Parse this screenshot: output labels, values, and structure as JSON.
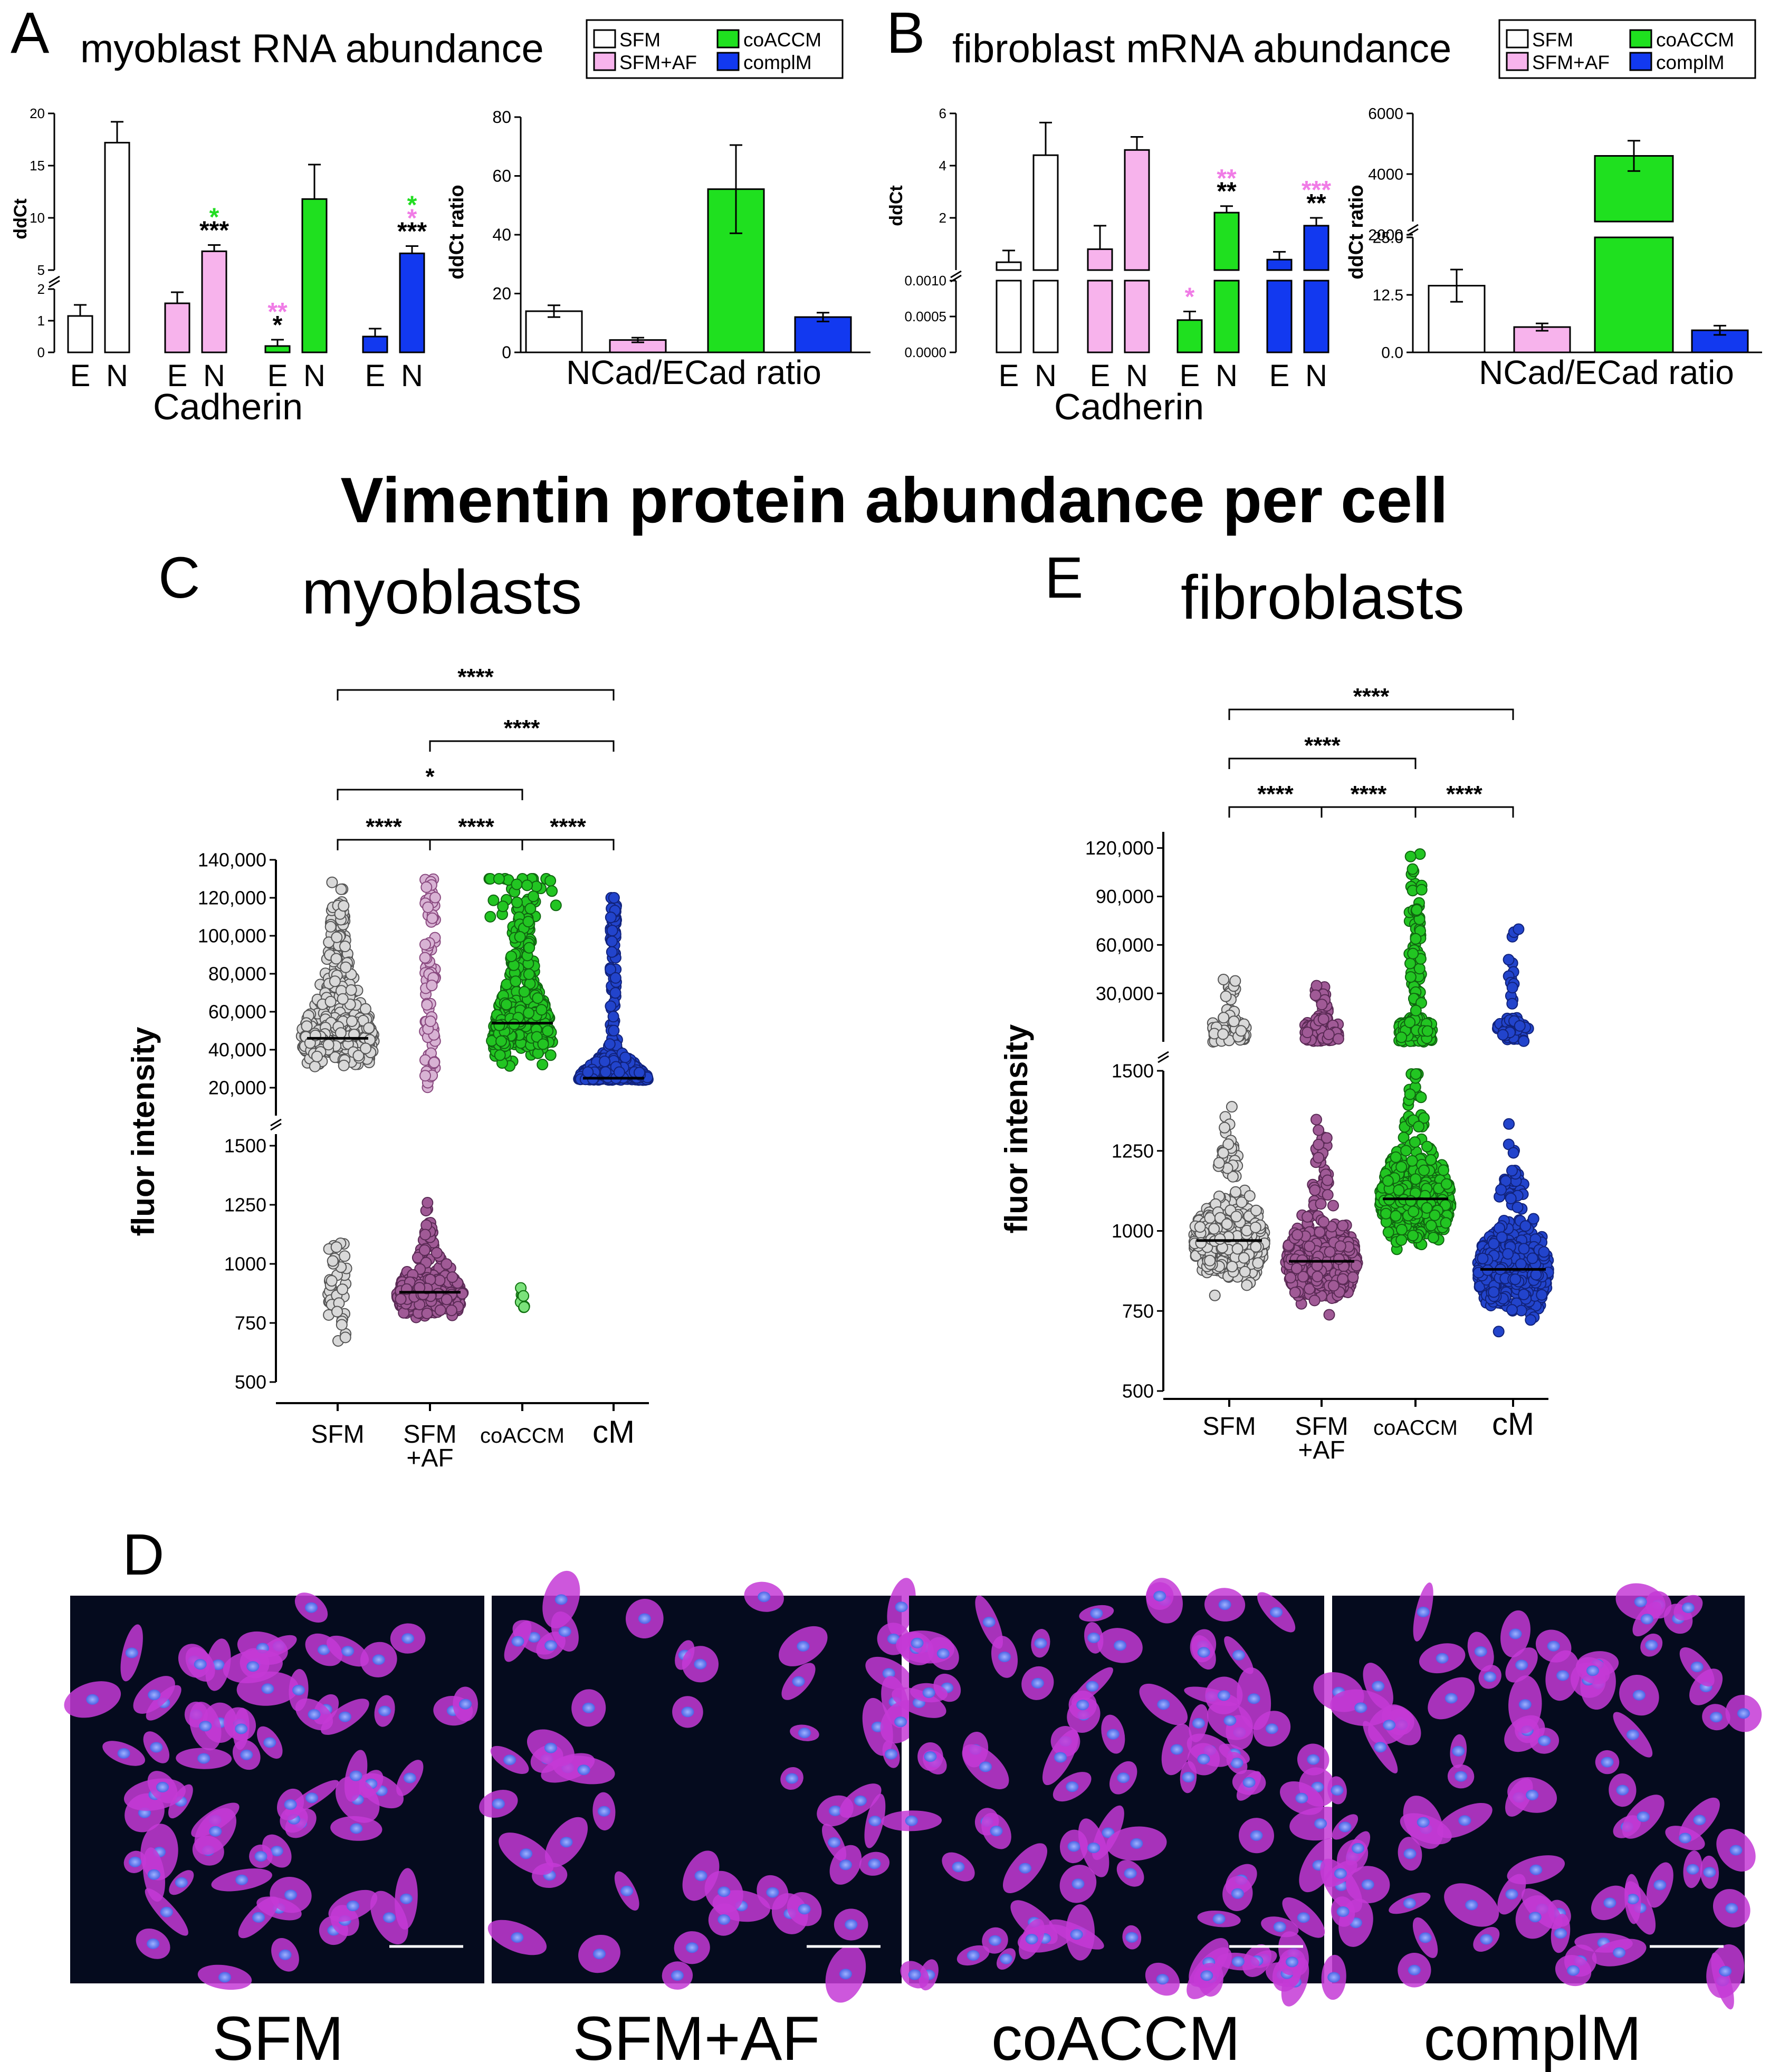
{
  "figure_title": "Vimentin protein abundance per cell",
  "colors": {
    "SFM": "#ffffff",
    "SFM+AF": "#f7b3ec",
    "coACCM": "#1fe01f",
    "complM": "#1239f0",
    "sig_green": "#22dd22",
    "sig_pink": "#f07ce6",
    "dot_SFM": "#d9d9d9",
    "dot_SFMAF": "#a05a96",
    "dot_coACCM": "#22c522",
    "dot_cM": "#2244cc"
  },
  "legend": {
    "items": [
      "SFM",
      "SFM+AF",
      "coACCM",
      "complM"
    ]
  },
  "panels": {
    "A": {
      "letter": "A",
      "title": "myoblast RNA abundance",
      "ylabel": "ddCt",
      "xlabel": "Cadherin",
      "ratio_ylabel": "ddCt ratio",
      "ratio_xlabel": "NCad/ECad ratio"
    },
    "B": {
      "letter": "B",
      "title": "fibroblast mRNA abundance",
      "ylabel": "ddCt",
      "xlabel": "Cadherin",
      "ratio_ylabel": "ddCt ratio",
      "ratio_xlabel": "NCad/ECad ratio"
    },
    "C": {
      "letter": "C",
      "title": "myoblasts",
      "ylabel": "fluor intensity"
    },
    "E": {
      "letter": "E",
      "title": "fibroblasts",
      "ylabel": "fluor intensity"
    },
    "D": {
      "letter": "D",
      "image_labels": [
        "SFM",
        "SFM+AF",
        "coACCM",
        "complM"
      ]
    }
  },
  "chart_data": [
    {
      "panel": "A-left",
      "type": "bar",
      "ylabel": "ddCt",
      "xlabel": "Cadherin",
      "broken_axis": true,
      "ylim_lower": [
        0,
        2
      ],
      "ylim_upper": [
        5,
        20
      ],
      "yticks_lower": [
        "0",
        "1",
        "2"
      ],
      "yticks_upper": [
        "5",
        "10",
        "15",
        "20"
      ],
      "categories": [
        "E",
        "N"
      ],
      "series": [
        {
          "name": "SFM",
          "values": [
            1.15,
            17.2
          ],
          "errors": [
            0.35,
            2.0
          ],
          "sig": [
            [],
            []
          ]
        },
        {
          "name": "SFM+AF",
          "values": [
            1.55,
            6.8
          ],
          "errors": [
            0.35,
            0.6
          ],
          "sig": [
            [],
            [
              {
                "text": "***",
                "color": "black"
              },
              {
                "text": "*",
                "color": "green"
              }
            ]
          ]
        },
        {
          "name": "coACCM",
          "values": [
            0.2,
            11.8
          ],
          "errors": [
            0.2,
            3.3
          ],
          "sig": [
            [
              {
                "text": "*",
                "color": "black"
              },
              {
                "text": "**",
                "color": "pink"
              }
            ],
            []
          ]
        },
        {
          "name": "complM",
          "values": [
            0.5,
            6.6
          ],
          "errors": [
            0.25,
            0.7
          ],
          "sig": [
            [],
            [
              {
                "text": "***",
                "color": "black"
              },
              {
                "text": "*",
                "color": "pink"
              },
              {
                "text": "*",
                "color": "green"
              }
            ]
          ]
        }
      ]
    },
    {
      "panel": "A-right",
      "type": "bar",
      "ylabel": "ddCt ratio",
      "xlabel": "NCad/ECad ratio",
      "ylim": [
        0,
        80
      ],
      "yticks": [
        "0",
        "20",
        "40",
        "60",
        "80"
      ],
      "categories": [
        "SFM",
        "SFM+AF",
        "coACCM",
        "complM"
      ],
      "values": [
        14,
        4.2,
        55.5,
        12
      ],
      "errors": [
        2,
        0.8,
        15,
        1.5
      ]
    },
    {
      "panel": "B-left",
      "type": "bar",
      "ylabel": "ddCt",
      "xlabel": "Cadherin",
      "broken_axis": true,
      "ylim_lower": [
        0,
        0.001
      ],
      "ylim_upper": [
        0,
        6
      ],
      "yticks_lower": [
        "0.0000",
        "0.0005",
        "0.0010"
      ],
      "yticks_upper": [
        "2",
        "4",
        "6"
      ],
      "categories": [
        "E",
        "N"
      ],
      "series": [
        {
          "name": "SFM",
          "values": [
            0.3,
            4.4
          ],
          "errors": [
            0.45,
            1.25
          ],
          "sig": [
            [],
            []
          ]
        },
        {
          "name": "SFM+AF",
          "values": [
            0.8,
            4.6
          ],
          "errors": [
            0.9,
            0.5
          ],
          "sig": [
            [],
            []
          ]
        },
        {
          "name": "coACCM",
          "values": [
            0.00045,
            2.2
          ],
          "errors": [
            0.00012,
            0.25
          ],
          "sig": [
            [
              {
                "text": "*",
                "color": "pink"
              }
            ],
            [
              {
                "text": "**",
                "color": "black"
              },
              {
                "text": "**",
                "color": "pink"
              }
            ]
          ]
        },
        {
          "name": "complM",
          "values": [
            0.4,
            1.7
          ],
          "errors": [
            0.3,
            0.3
          ],
          "sig": [
            [],
            [
              {
                "text": "**",
                "color": "black"
              },
              {
                "text": "***",
                "color": "pink"
              }
            ]
          ]
        }
      ]
    },
    {
      "panel": "B-right",
      "type": "bar",
      "ylabel": "ddCt ratio",
      "xlabel": "NCad/ECad ratio",
      "broken_axis": true,
      "ylim_lower": [
        0,
        25
      ],
      "ylim_upper": [
        0,
        6000
      ],
      "yticks_lower": [
        "0.0",
        "12.5",
        "25.0"
      ],
      "yticks_upper": [
        "2000",
        "4000",
        "6000"
      ],
      "categories": [
        "SFM",
        "SFM+AF",
        "coACCM",
        "complM"
      ],
      "values": [
        14.5,
        5.5,
        4600,
        4.8
      ],
      "errors": [
        3.5,
        0.8,
        500,
        1.0
      ]
    },
    {
      "panel": "C",
      "type": "scatter",
      "subtype": "dot_strip_broken_axis",
      "ylabel": "fluor intensity",
      "categories": [
        "SFM",
        "SFM\n+AF",
        "coACCM",
        "cM"
      ],
      "ylim_lower": [
        500,
        1500
      ],
      "ylim_upper": [
        20000,
        140000
      ],
      "yticks_lower": [
        "500",
        "750",
        "1000",
        "1250",
        "1500"
      ],
      "yticks_upper": [
        "20,000",
        "40,000",
        "60,000",
        "80,000",
        "100,000",
        "120,000",
        "140,000"
      ],
      "medians": [
        46000,
        880,
        54000,
        25000
      ],
      "significance": [
        {
          "from": 0,
          "to": 1,
          "label": "****"
        },
        {
          "from": 1,
          "to": 2,
          "label": "****"
        },
        {
          "from": 2,
          "to": 3,
          "label": "****"
        },
        {
          "from": 0,
          "to": 2,
          "label": "*"
        },
        {
          "from": 1,
          "to": 3,
          "label": "****"
        },
        {
          "from": 0,
          "to": 3,
          "label": "****"
        }
      ]
    },
    {
      "panel": "E",
      "type": "scatter",
      "subtype": "dot_strip_broken_axis",
      "ylabel": "fluor intensity",
      "categories": [
        "SFM",
        "SFM\n+AF",
        "coACCM",
        "cM"
      ],
      "ylim_lower": [
        500,
        1500
      ],
      "ylim_upper": [
        0,
        130000
      ],
      "yticks_lower": [
        "500",
        "750",
        "1000",
        "1250",
        "1500"
      ],
      "yticks_upper": [
        "30,000",
        "60,000",
        "90,000",
        "120,000"
      ],
      "medians": [
        970,
        905,
        1100,
        880
      ],
      "significance": [
        {
          "from": 0,
          "to": 1,
          "label": "****"
        },
        {
          "from": 1,
          "to": 2,
          "label": "****"
        },
        {
          "from": 2,
          "to": 3,
          "label": "****"
        },
        {
          "from": 0,
          "to": 2,
          "label": "****"
        },
        {
          "from": 0,
          "to": 3,
          "label": "****"
        }
      ]
    }
  ]
}
